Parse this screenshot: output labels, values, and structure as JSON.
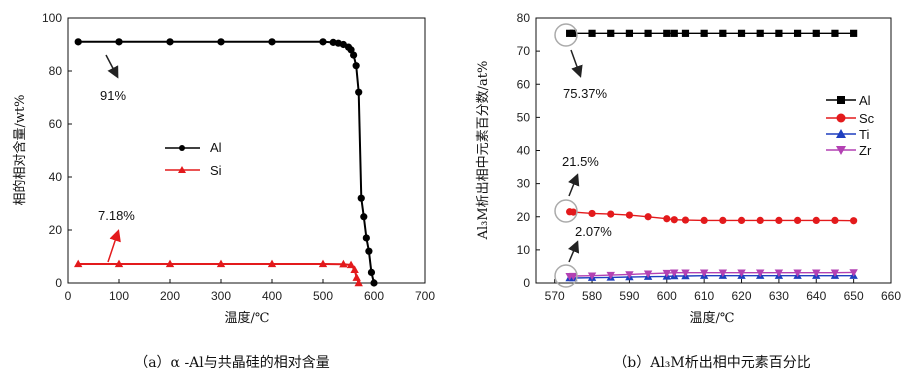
{
  "chart_data": [
    {
      "type": "line",
      "xlabel": "温度/℃",
      "ylabel": "相的相对含量/wt%",
      "xlim": [
        0,
        700
      ],
      "ylim": [
        0,
        100
      ],
      "xticks": [
        0,
        100,
        200,
        300,
        400,
        500,
        600,
        700
      ],
      "yticks": [
        0,
        20,
        40,
        60,
        80,
        100
      ],
      "legend": "center-right",
      "series": [
        {
          "name": "Al",
          "color": "#000000",
          "marker": "circle",
          "points": [
            [
              20,
              91
            ],
            [
              100,
              91
            ],
            [
              200,
              91
            ],
            [
              300,
              91
            ],
            [
              400,
              91
            ],
            [
              500,
              91
            ],
            [
              520,
              90.8
            ],
            [
              530,
              90.5
            ],
            [
              540,
              90
            ],
            [
              550,
              89
            ],
            [
              555,
              88
            ],
            [
              560,
              86
            ],
            [
              565,
              82
            ],
            [
              570,
              72
            ],
            [
              575,
              32
            ],
            [
              580,
              25
            ],
            [
              585,
              17
            ],
            [
              590,
              12
            ],
            [
              595,
              4
            ],
            [
              600,
              0
            ]
          ]
        },
        {
          "name": "Si",
          "color": "#e31a1c",
          "marker": "triangle",
          "points": [
            [
              20,
              7.18
            ],
            [
              100,
              7.18
            ],
            [
              200,
              7.18
            ],
            [
              300,
              7.18
            ],
            [
              400,
              7.18
            ],
            [
              500,
              7.18
            ],
            [
              540,
              7.1
            ],
            [
              555,
              6.8
            ],
            [
              562,
              5
            ],
            [
              566,
              2
            ],
            [
              570,
              0
            ]
          ]
        }
      ],
      "annotations": [
        "91%",
        "7.18%"
      ],
      "caption": "（a）α -Al与共晶硅的相对含量"
    },
    {
      "type": "line",
      "xlabel": "温度/℃",
      "ylabel": "Al₃M析出相中元素百分数/at%",
      "xlim": [
        565,
        660
      ],
      "ylim": [
        0,
        80
      ],
      "xticks": [
        570,
        580,
        590,
        600,
        610,
        620,
        630,
        640,
        650,
        660
      ],
      "yticks": [
        0,
        10,
        20,
        30,
        40,
        50,
        60,
        70,
        80
      ],
      "legend": "right",
      "x": [
        574,
        575,
        580,
        585,
        590,
        595,
        600,
        602,
        605,
        610,
        615,
        620,
        625,
        630,
        635,
        640,
        645,
        650
      ],
      "series": [
        {
          "name": "Al",
          "color": "#000000",
          "marker": "square",
          "values": [
            75.37,
            75.37,
            75.37,
            75.37,
            75.37,
            75.37,
            75.37,
            75.37,
            75.37,
            75.37,
            75.37,
            75.37,
            75.37,
            75.37,
            75.37,
            75.37,
            75.37,
            75.37
          ]
        },
        {
          "name": "Sc",
          "color": "#e31a1c",
          "marker": "circle",
          "values": [
            21.5,
            21.4,
            21,
            20.8,
            20.5,
            20,
            19.4,
            19.1,
            19,
            18.9,
            18.9,
            18.9,
            18.9,
            18.9,
            18.9,
            18.9,
            18.9,
            18.8
          ]
        },
        {
          "name": "Ti",
          "color": "#1f3fbf",
          "marker": "triangle",
          "values": [
            1.5,
            1.5,
            1.6,
            1.7,
            1.8,
            1.9,
            2.0,
            2.1,
            2.1,
            2.2,
            2.2,
            2.2,
            2.2,
            2.2,
            2.2,
            2.2,
            2.2,
            2.2
          ]
        },
        {
          "name": "Zr",
          "color": "#b341b3",
          "marker": "triangle-down",
          "values": [
            2.07,
            2.1,
            2.2,
            2.4,
            2.6,
            2.8,
            3.0,
            3.1,
            3.1,
            3.1,
            3.1,
            3.1,
            3.1,
            3.1,
            3.1,
            3.1,
            3.1,
            3.2
          ]
        }
      ],
      "annotations": [
        "75.37%",
        "21.5%",
        "2.07%"
      ],
      "caption": "（b）Al₃M析出相中元素百分比"
    }
  ]
}
